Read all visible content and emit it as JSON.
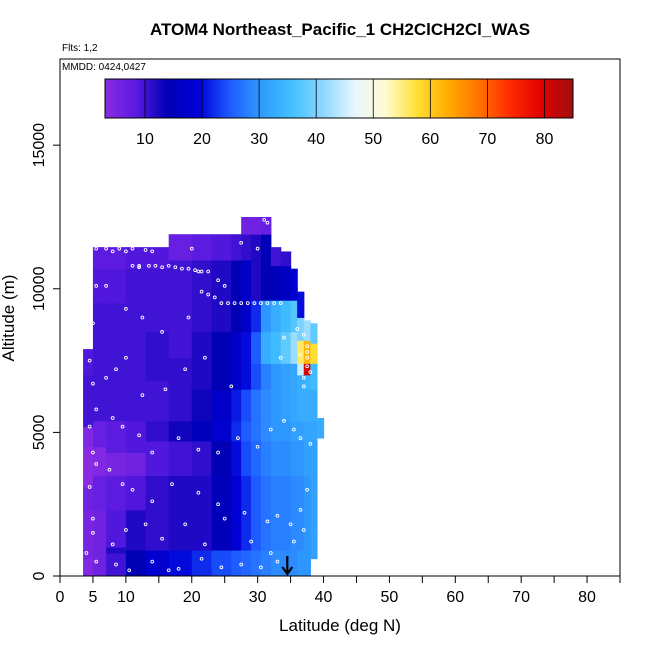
{
  "chart_data": {
    "type": "heatmap",
    "title": "ATOM4 Northeast_Pacific_1 CH2ClCH2Cl_WAS",
    "flights_text": "Flts: 1,2",
    "dates_text": "MMDD: 0424,0427",
    "xlabel": "Latitude (deg N)",
    "ylabel": "Altitude (m)",
    "xlim": [
      0,
      85
    ],
    "ylim": [
      0,
      18000
    ],
    "x_ticks": [
      0,
      5,
      10,
      20,
      30,
      40,
      50,
      60,
      70,
      80
    ],
    "x_minor_ticks": [
      15,
      25,
      35,
      45,
      55,
      65,
      75,
      85
    ],
    "y_ticks": [
      0,
      5000,
      10000,
      15000
    ],
    "colorbar": {
      "min": 3,
      "max": 85,
      "ticks": [
        10,
        20,
        30,
        40,
        50,
        60,
        70,
        80
      ],
      "colors": [
        "#8a2be2",
        "#5a1ae0",
        "#0000b4",
        "#0000d8",
        "#1e5aff",
        "#2f9bff",
        "#42c0ff",
        "#8fd8ff",
        "#e8f6ff",
        "#fffbd0",
        "#ffe034",
        "#ffab00",
        "#ff7200",
        "#ff2a00",
        "#e00000",
        "#a01010"
      ]
    },
    "arrow": {
      "latitude": 34.5,
      "altitude_top": 700
    },
    "columns": [
      {
        "x0": 3.5,
        "x1": 5,
        "bottom": 0,
        "top": 7900,
        "rows": [
          [
            0,
            4
          ],
          [
            600,
            5
          ],
          [
            2300,
            6
          ],
          [
            3100,
            3
          ],
          [
            4500,
            4
          ],
          [
            5200,
            10
          ],
          [
            7000,
            9
          ]
        ]
      },
      {
        "x0": 5,
        "x1": 7,
        "bottom": 0,
        "top": 11450,
        "rows": [
          [
            0,
            6
          ],
          [
            2300,
            7
          ],
          [
            3500,
            4
          ],
          [
            4500,
            7
          ],
          [
            5400,
            10
          ],
          [
            9500,
            9
          ],
          [
            10700,
            8
          ]
        ]
      },
      {
        "x0": 7,
        "x1": 10,
        "bottom": 0,
        "top": 11450,
        "rows": [
          [
            0,
            10
          ],
          [
            800,
            12
          ],
          [
            1000,
            9
          ],
          [
            2300,
            8
          ],
          [
            3500,
            5
          ],
          [
            4300,
            8
          ],
          [
            5400,
            10
          ],
          [
            9500,
            9
          ],
          [
            10700,
            8
          ]
        ]
      },
      {
        "x0": 10,
        "x1": 13,
        "bottom": 0,
        "top": 11450,
        "rows": [
          [
            0,
            14
          ],
          [
            900,
            12
          ],
          [
            2300,
            9
          ],
          [
            3500,
            6
          ],
          [
            4300,
            9
          ],
          [
            5400,
            10
          ],
          [
            10700,
            9
          ]
        ]
      },
      {
        "x0": 13,
        "x1": 16.5,
        "bottom": 0,
        "top": 11450,
        "rows": [
          [
            0,
            18
          ],
          [
            900,
            11
          ],
          [
            3500,
            9
          ],
          [
            4700,
            11
          ],
          [
            5400,
            10
          ],
          [
            6800,
            11
          ],
          [
            8500,
            10
          ],
          [
            10700,
            9
          ]
        ]
      },
      {
        "x0": 16.5,
        "x1": 20,
        "bottom": 0,
        "top": 11900,
        "rows": [
          [
            0,
            20
          ],
          [
            900,
            12
          ],
          [
            3500,
            10
          ],
          [
            4700,
            13
          ],
          [
            5400,
            11
          ],
          [
            7600,
            10
          ],
          [
            11000,
            7
          ]
        ]
      },
      {
        "x0": 20,
        "x1": 23,
        "bottom": 0,
        "top": 11900,
        "rows": [
          [
            0,
            22
          ],
          [
            900,
            12
          ],
          [
            3500,
            11
          ],
          [
            4700,
            15
          ],
          [
            5400,
            13
          ],
          [
            6500,
            12
          ],
          [
            8500,
            11
          ],
          [
            11000,
            8
          ]
        ]
      },
      {
        "x0": 23,
        "x1": 26,
        "bottom": 0,
        "top": 11900,
        "rows": [
          [
            0,
            24
          ],
          [
            900,
            15
          ],
          [
            3500,
            14
          ],
          [
            4700,
            18
          ],
          [
            5400,
            17
          ],
          [
            6500,
            14
          ],
          [
            8500,
            12
          ],
          [
            11000,
            9
          ]
        ]
      },
      {
        "x0": 26,
        "x1": 27.5,
        "bottom": 0,
        "top": 11900,
        "rows": [
          [
            0,
            25
          ],
          [
            900,
            19
          ],
          [
            3500,
            20
          ],
          [
            4700,
            22
          ],
          [
            5400,
            21
          ],
          [
            6500,
            17
          ],
          [
            8500,
            14
          ],
          [
            11000,
            10
          ]
        ]
      },
      {
        "x0": 27.5,
        "x1": 29,
        "bottom": 0,
        "top": 12500,
        "rows": [
          [
            0,
            26
          ],
          [
            900,
            22
          ],
          [
            3500,
            24
          ],
          [
            4700,
            25
          ],
          [
            5400,
            24
          ],
          [
            6500,
            20
          ],
          [
            8500,
            17
          ],
          [
            11000,
            11
          ],
          [
            11900,
            6
          ]
        ]
      },
      {
        "x0": 29,
        "x1": 30.5,
        "bottom": 0,
        "top": 12500,
        "rows": [
          [
            0,
            27
          ],
          [
            900,
            25
          ],
          [
            3500,
            26
          ],
          [
            4700,
            27
          ],
          [
            5400,
            27
          ],
          [
            6500,
            24
          ],
          [
            7400,
            25
          ],
          [
            8500,
            22
          ],
          [
            9600,
            12
          ],
          [
            11900,
            6
          ]
        ]
      },
      {
        "x0": 30.5,
        "x1": 32,
        "bottom": 0,
        "top": 12500,
        "rows": [
          [
            0,
            28
          ],
          [
            900,
            27
          ],
          [
            3500,
            28
          ],
          [
            4700,
            29
          ],
          [
            5400,
            29
          ],
          [
            6500,
            28
          ],
          [
            7400,
            33
          ],
          [
            8500,
            30
          ],
          [
            9600,
            14
          ],
          [
            11900,
            7
          ]
        ]
      },
      {
        "x0": 32,
        "x1": 33.5,
        "bottom": 0,
        "top": 11450,
        "rows": [
          [
            0,
            29
          ],
          [
            900,
            28
          ],
          [
            3500,
            29
          ],
          [
            4700,
            30
          ],
          [
            5400,
            30
          ],
          [
            6500,
            30
          ],
          [
            7400,
            35
          ],
          [
            8500,
            33
          ],
          [
            9600,
            15
          ],
          [
            10800,
            10
          ]
        ]
      },
      {
        "x0": 33.5,
        "x1": 35,
        "bottom": 0,
        "top": 11300,
        "rows": [
          [
            0,
            29
          ],
          [
            900,
            28
          ],
          [
            3500,
            29
          ],
          [
            4700,
            30
          ],
          [
            5400,
            31
          ],
          [
            6500,
            31
          ],
          [
            7400,
            38
          ],
          [
            8500,
            35
          ],
          [
            9600,
            16
          ],
          [
            10800,
            11
          ]
        ]
      },
      {
        "x0": 35,
        "x1": 36,
        "bottom": 0,
        "top": 10700,
        "rows": [
          [
            0,
            29
          ],
          [
            900,
            29
          ],
          [
            3500,
            30
          ],
          [
            4700,
            31
          ],
          [
            5400,
            32
          ],
          [
            6500,
            32
          ],
          [
            7400,
            42
          ],
          [
            8500,
            37
          ],
          [
            9600,
            18
          ]
        ]
      },
      {
        "x0": 36,
        "x1": 37,
        "bottom": 0,
        "top": 9900,
        "rows": [
          [
            0,
            30
          ],
          [
            900,
            29
          ],
          [
            3500,
            30
          ],
          [
            4700,
            31
          ],
          [
            5400,
            33
          ],
          [
            6500,
            33
          ],
          [
            7000,
            45
          ],
          [
            7400,
            56
          ],
          [
            8200,
            40
          ],
          [
            9000,
            20
          ]
        ]
      },
      {
        "x0": 37,
        "x1": 38,
        "bottom": 0,
        "top": 8900,
        "rows": [
          [
            0,
            30
          ],
          [
            900,
            30
          ],
          [
            3500,
            31
          ],
          [
            4700,
            32
          ],
          [
            5400,
            33
          ],
          [
            6500,
            34
          ],
          [
            7000,
            80
          ],
          [
            7400,
            62
          ],
          [
            8200,
            42
          ]
        ]
      },
      {
        "x0": 38,
        "x1": 39,
        "bottom": 600,
        "top": 8800,
        "rows": [
          [
            600,
            31
          ],
          [
            1900,
            31
          ],
          [
            3500,
            31
          ],
          [
            4700,
            32
          ],
          [
            5400,
            33
          ],
          [
            6500,
            35
          ],
          [
            7400,
            58
          ],
          [
            8100,
            38
          ]
        ]
      },
      {
        "x0": 39,
        "x1": 40,
        "bottom": 4800,
        "top": 5500,
        "rows": [
          [
            4800,
            33
          ]
        ]
      }
    ],
    "samples": [
      [
        4,
        800
      ],
      [
        5,
        2000
      ],
      [
        4.5,
        3100
      ],
      [
        5,
        4300
      ],
      [
        4.5,
        5200
      ],
      [
        5,
        6700
      ],
      [
        4.5,
        7500
      ],
      [
        5,
        8800
      ],
      [
        5.5,
        10100
      ],
      [
        5.5,
        11400
      ],
      [
        7,
        11400
      ],
      [
        8,
        11300
      ],
      [
        9,
        11400
      ],
      [
        10,
        11300
      ],
      [
        11,
        11400
      ],
      [
        12,
        10800
      ],
      [
        13,
        11350
      ],
      [
        14,
        11300
      ],
      [
        11,
        10800
      ],
      [
        12,
        10750
      ],
      [
        13.5,
        10800
      ],
      [
        14.5,
        10800
      ],
      [
        15.5,
        10750
      ],
      [
        16.5,
        10800
      ],
      [
        17.5,
        10750
      ],
      [
        18.5,
        10700
      ],
      [
        19.5,
        10700
      ],
      [
        20.5,
        10650
      ],
      [
        21,
        10600
      ],
      [
        21.5,
        10600
      ],
      [
        22.5,
        10600
      ],
      [
        7,
        10100
      ],
      [
        10,
        9300
      ],
      [
        12.5,
        9000
      ],
      [
        15.5,
        8500
      ],
      [
        19.5,
        9000
      ],
      [
        24,
        10300
      ],
      [
        25,
        10100
      ],
      [
        21.5,
        9900
      ],
      [
        22.5,
        9800
      ],
      [
        23.5,
        9700
      ],
      [
        24.5,
        9500
      ],
      [
        25.5,
        9500
      ],
      [
        26.5,
        9500
      ],
      [
        27.5,
        9500
      ],
      [
        28.5,
        9500
      ],
      [
        29.5,
        9500
      ],
      [
        30.5,
        9500
      ],
      [
        31.5,
        9500
      ],
      [
        32.5,
        9500
      ],
      [
        33.5,
        9500
      ],
      [
        30,
        11400
      ],
      [
        31,
        12400
      ],
      [
        31.5,
        12300
      ],
      [
        32.5,
        12350
      ],
      [
        33.5,
        12300
      ],
      [
        34.5,
        12300
      ],
      [
        35.5,
        12300
      ],
      [
        36.5,
        12300
      ],
      [
        34.5,
        12400
      ],
      [
        35.5,
        12400
      ],
      [
        36.5,
        12450
      ],
      [
        27.5,
        11600
      ],
      [
        20,
        11400
      ],
      [
        36,
        8600
      ],
      [
        37,
        8400
      ],
      [
        37.5,
        8000
      ],
      [
        37.5,
        7800
      ],
      [
        37.5,
        7600
      ],
      [
        37.5,
        7300
      ],
      [
        38,
        7100
      ],
      [
        33.5,
        7600
      ],
      [
        34,
        8300
      ],
      [
        36.5,
        7700
      ],
      [
        37,
        6900
      ],
      [
        37,
        6600
      ],
      [
        7,
        6900
      ],
      [
        8.5,
        7200
      ],
      [
        10,
        7600
      ],
      [
        12.5,
        6300
      ],
      [
        16,
        6500
      ],
      [
        19,
        7200
      ],
      [
        22,
        7600
      ],
      [
        26,
        6600
      ],
      [
        5.5,
        5800
      ],
      [
        8,
        5500
      ],
      [
        9.5,
        5200
      ],
      [
        12,
        4900
      ],
      [
        14,
        4300
      ],
      [
        18,
        4800
      ],
      [
        21,
        4400
      ],
      [
        24,
        4300
      ],
      [
        27,
        4800
      ],
      [
        30,
        4500
      ],
      [
        32,
        5100
      ],
      [
        34,
        5400
      ],
      [
        35.5,
        5100
      ],
      [
        36.5,
        4800
      ],
      [
        38,
        4600
      ],
      [
        5.5,
        3900
      ],
      [
        7.5,
        3700
      ],
      [
        9.5,
        3200
      ],
      [
        11,
        3000
      ],
      [
        14,
        2600
      ],
      [
        17,
        3200
      ],
      [
        21,
        2900
      ],
      [
        24,
        2500
      ],
      [
        28,
        2200
      ],
      [
        31.5,
        1900
      ],
      [
        33,
        2100
      ],
      [
        35,
        1800
      ],
      [
        36.5,
        2300
      ],
      [
        37.5,
        3000
      ],
      [
        5,
        1500
      ],
      [
        8,
        1100
      ],
      [
        10,
        1600
      ],
      [
        13,
        1800
      ],
      [
        15.5,
        1300
      ],
      [
        19,
        1800
      ],
      [
        22,
        1100
      ],
      [
        25,
        2000
      ],
      [
        29,
        1200
      ],
      [
        32,
        800
      ],
      [
        35.5,
        1200
      ],
      [
        37,
        1600
      ],
      [
        5.5,
        500
      ],
      [
        8.5,
        400
      ],
      [
        10.5,
        200
      ],
      [
        14,
        500
      ],
      [
        16.5,
        200
      ],
      [
        18,
        250
      ],
      [
        21.5,
        600
      ],
      [
        24.5,
        300
      ],
      [
        27.5,
        400
      ],
      [
        30.5,
        300
      ],
      [
        33,
        500
      ]
    ]
  }
}
